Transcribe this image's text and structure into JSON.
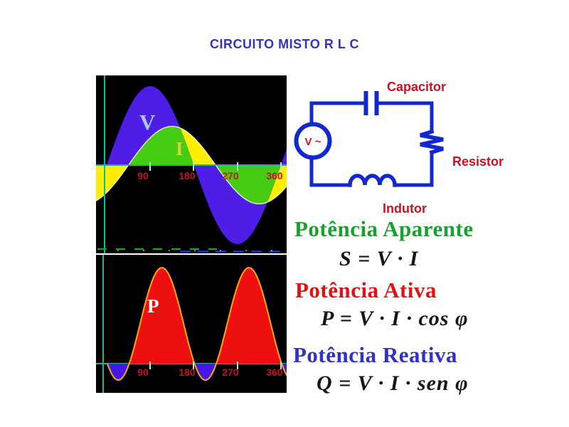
{
  "title": "CIRCUITO MISTO R L C",
  "title_color": "#3333bb",
  "chart_data": [
    {
      "type": "area",
      "name": "voltage-current-waveforms",
      "description": "Voltage V and current I sine waves versus phase angle, current lagging 45 degrees",
      "x_axis_unit": "degrees",
      "x_ticks": [
        90,
        180,
        270,
        360
      ],
      "x_tick_labels": [
        "90",
        "180",
        "270",
        "360"
      ],
      "x_range": [
        0,
        360
      ],
      "grid": false,
      "background_color": "#000000",
      "axis_color": "#18b695",
      "tick_label_color": "#cc1122",
      "series": [
        {
          "name": "V",
          "label": "V",
          "quantity": "voltage",
          "amplitude_rel": 1.0,
          "phase_lag_deg": 0,
          "fill_color": "#4f1de8",
          "label_color": "#a9c7f2"
        },
        {
          "name": "I",
          "label": "I",
          "quantity": "current",
          "amplitude_rel": 0.49,
          "phase_lag_deg": 45,
          "fill_color": "#ffee00",
          "overlap_fill_color": "#46cc12",
          "outline_color": "#eeeec8",
          "label_color": "#d8d23a"
        }
      ],
      "bottom_dash_colors": {
        "green": "#2a9a2a",
        "blue": "#2233cc",
        "white": "#cccccc"
      }
    },
    {
      "type": "area",
      "name": "instantaneous-power-waveform",
      "description": "Instantaneous power P = sin(θ)·sin(θ−45°), positive humps red, negative dips blue",
      "x_axis_unit": "degrees",
      "x_ticks": [
        90,
        180,
        270,
        360
      ],
      "x_tick_labels": [
        "90",
        "180",
        "270",
        "360"
      ],
      "x_range": [
        0,
        360
      ],
      "zero_crossings_deg": [
        0,
        45,
        180,
        225,
        360
      ],
      "grid": false,
      "background_color": "#000000",
      "axis_color": "#18b695",
      "tick_label_color": "#cc1122",
      "series": [
        {
          "name": "P",
          "label": "P",
          "quantity": "power",
          "phase_angle_deg": 45,
          "positive_fill_color": "#ee0f0f",
          "negative_fill_color": "#4418e8",
          "outline_color": "#ffa800",
          "label_color": "#ffffff"
        }
      ]
    }
  ],
  "circuit": {
    "source_label": "V ~",
    "capacitor_label": "Capacitor",
    "resistor_label": "Resistor",
    "inductor_label": "Indutor",
    "wire_color": "#1228cc",
    "label_color": "#cc1122"
  },
  "power_section": {
    "apparent": {
      "heading": "Potência Aparente",
      "heading_color": "#17a22e",
      "formula": "S = V · I"
    },
    "active": {
      "heading": "Potência Ativa",
      "heading_color": "#e01111",
      "formula": "P = V · I · cos φ"
    },
    "reactive": {
      "heading": "Potência Reativa",
      "heading_color": "#3030cc",
      "formula": "Q = V · I · sen φ"
    }
  }
}
